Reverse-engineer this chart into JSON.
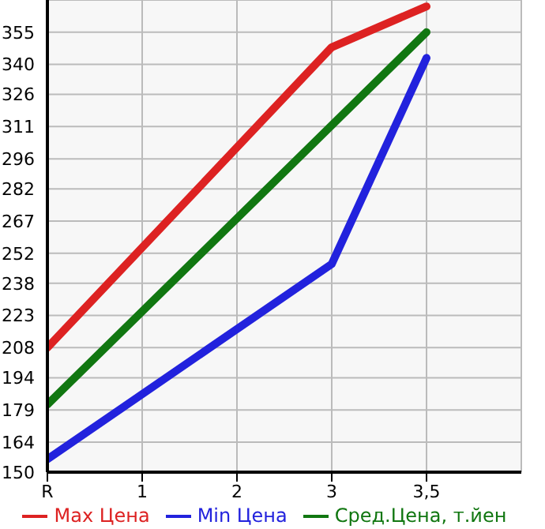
{
  "chart_data": {
    "type": "line",
    "categories": [
      "R",
      "1",
      "2",
      "3",
      "3,5"
    ],
    "series": [
      {
        "name": "Max Цена",
        "color": "#dd2222",
        "values": [
          208,
          null,
          null,
          348,
          367
        ]
      },
      {
        "name": "Min Цена",
        "color": "#2222dd",
        "values": [
          156,
          null,
          null,
          247,
          343
        ]
      },
      {
        "name": "Сред.Цена, т.йен",
        "color": "#117711",
        "values": [
          181.5,
          null,
          null,
          null,
          355
        ]
      }
    ],
    "ylim": [
      150,
      370
    ],
    "yticks": [
      150,
      164,
      179,
      194,
      208,
      223,
      238,
      252,
      267,
      282,
      296,
      311,
      326,
      340,
      355
    ],
    "grid": true,
    "legend": "bottom",
    "marker": "none",
    "line_style": "solid"
  }
}
